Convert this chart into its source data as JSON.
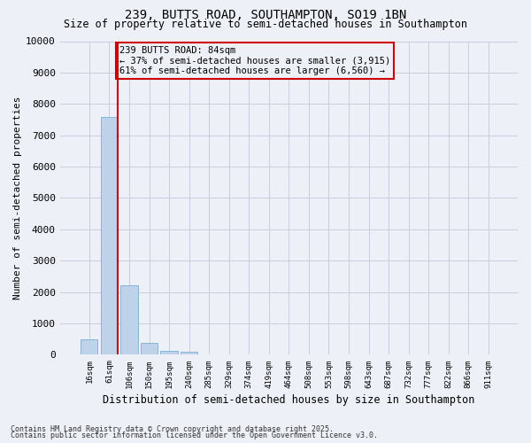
{
  "title": "239, BUTTS ROAD, SOUTHAMPTON, SO19 1BN",
  "subtitle": "Size of property relative to semi-detached houses in Southampton",
  "xlabel": "Distribution of semi-detached houses by size in Southampton",
  "ylabel": "Number of semi-detached properties",
  "categories": [
    "16sqm",
    "61sqm",
    "106sqm",
    "150sqm",
    "195sqm",
    "240sqm",
    "285sqm",
    "329sqm",
    "374sqm",
    "419sqm",
    "464sqm",
    "508sqm",
    "553sqm",
    "598sqm",
    "643sqm",
    "687sqm",
    "732sqm",
    "777sqm",
    "822sqm",
    "866sqm",
    "911sqm"
  ],
  "values": [
    480,
    7580,
    2210,
    370,
    130,
    100,
    5,
    0,
    0,
    0,
    0,
    0,
    0,
    0,
    0,
    0,
    0,
    0,
    0,
    0,
    0
  ],
  "bar_color": "#bed3ea",
  "bar_edge_color": "#7aafd4",
  "grid_color": "#ccccdd",
  "bg_color": "#eef0f8",
  "vline_color": "#cc0000",
  "annotation_title": "239 BUTTS ROAD: 84sqm",
  "annotation_line1": "← 37% of semi-detached houses are smaller (3,915)",
  "annotation_line2": "61% of semi-detached houses are larger (6,560) →",
  "footer1": "Contains HM Land Registry data © Crown copyright and database right 2025.",
  "footer2": "Contains public sector information licensed under the Open Government Licence v3.0.",
  "ylim": [
    0,
    10000
  ],
  "yticks": [
    0,
    1000,
    2000,
    3000,
    4000,
    5000,
    6000,
    7000,
    8000,
    9000,
    10000
  ]
}
